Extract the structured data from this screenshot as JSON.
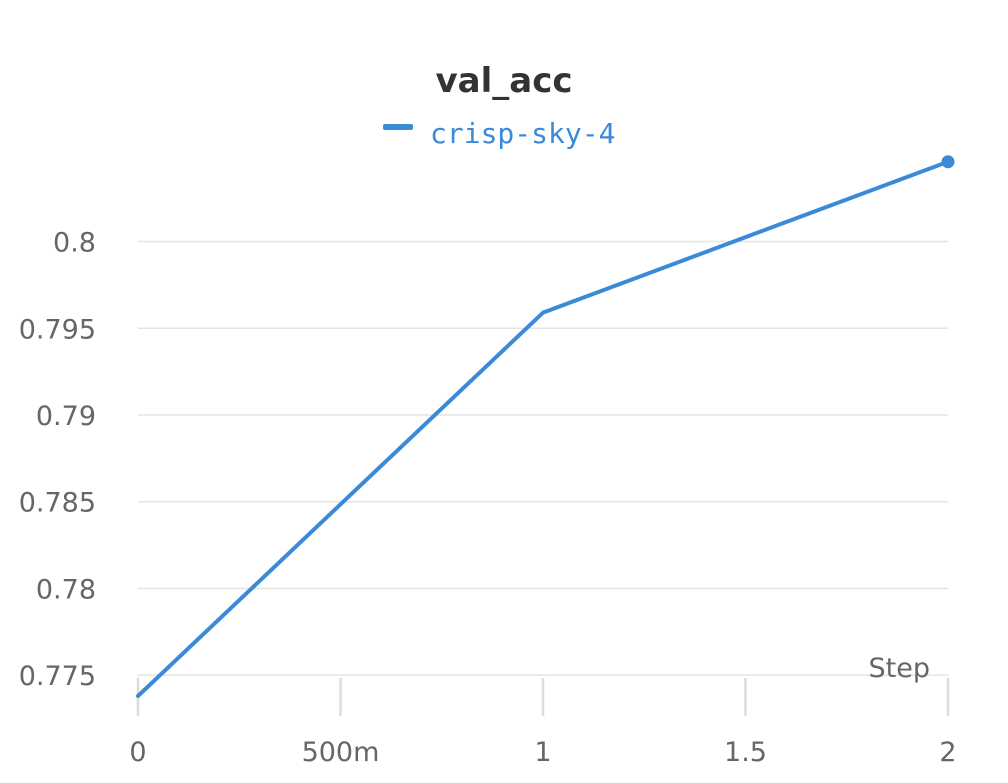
{
  "chart_data": {
    "type": "line",
    "title": "val_acc",
    "xlabel": "Step",
    "ylabel": "",
    "xlim": [
      0,
      2
    ],
    "ylim": [
      0.7738,
      0.8047
    ],
    "x_ticks": [
      0,
      0.5,
      1,
      1.5,
      2
    ],
    "x_tick_labels": [
      "0",
      "500m",
      "1",
      "1.5",
      "2"
    ],
    "y_ticks": [
      0.775,
      0.78,
      0.785,
      0.79,
      0.795,
      0.8
    ],
    "y_tick_labels": [
      "0.775",
      "0.78",
      "0.785",
      "0.79",
      "0.795",
      "0.8"
    ],
    "grid": true,
    "legend_position": "top-center",
    "series": [
      {
        "name": "crisp-sky-4",
        "color": "#3b8ad8",
        "x": [
          0,
          1,
          2
        ],
        "y": [
          0.7738,
          0.7959,
          0.8046
        ]
      }
    ]
  }
}
